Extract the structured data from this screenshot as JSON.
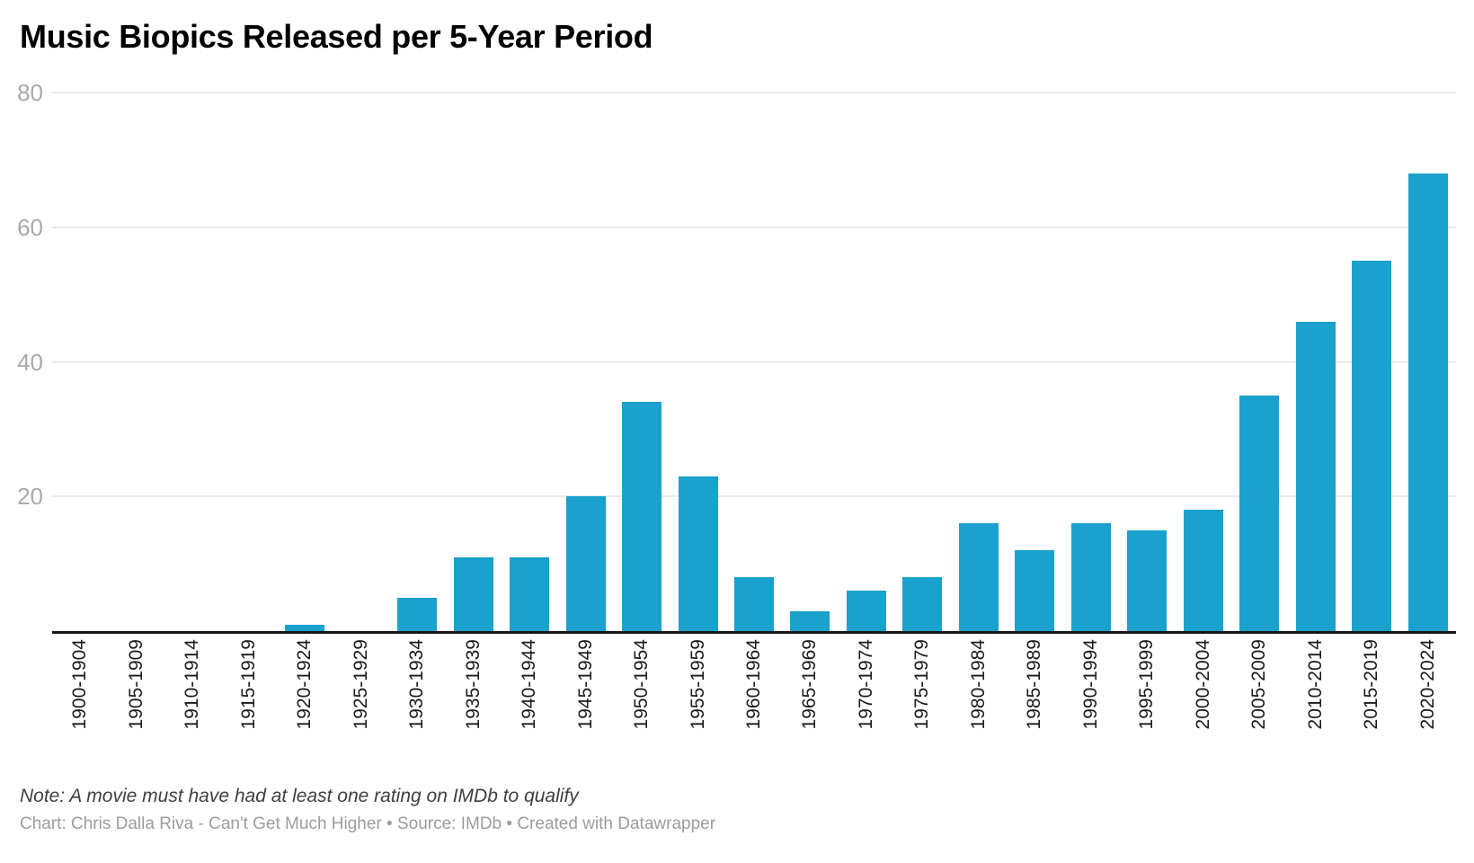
{
  "title": "Music Biopics Released per 5-Year Period",
  "note": "Note: A movie must have had at least one rating on IMDb to qualify",
  "credits": "Chart: Chris Dalla Riva - Can't Get Much Higher • Source: IMDb • Created with Datawrapper",
  "colors": {
    "bar": "#1aa1cd",
    "axis_line": "#161616",
    "gridline": "#e9e9e9",
    "y_tick_text": "#a9a9a9",
    "x_label_text": "#1a1a1a",
    "title_text": "#000000",
    "note_text": "#3f3f3f",
    "credits_text": "#9c9c9c",
    "background": "#ffffff"
  },
  "chart_data": {
    "type": "bar",
    "title": "Music Biopics Released per 5-Year Period",
    "categories": [
      "1900-1904",
      "1905-1909",
      "1910-1914",
      "1915-1919",
      "1920-1924",
      "1925-1929",
      "1930-1934",
      "1935-1939",
      "1940-1944",
      "1945-1949",
      "1950-1954",
      "1955-1959",
      "1960-1964",
      "1965-1969",
      "1970-1974",
      "1975-1979",
      "1980-1984",
      "1985-1989",
      "1990-1994",
      "1995-1999",
      "2000-2004",
      "2005-2009",
      "2010-2014",
      "2015-2019",
      "2020-2024"
    ],
    "values": [
      0,
      0,
      0,
      0,
      1,
      0,
      5,
      11,
      11,
      20,
      34,
      23,
      8,
      3,
      6,
      8,
      16,
      12,
      16,
      15,
      18,
      35,
      46,
      55,
      68
    ],
    "xlabel": "",
    "ylabel": "",
    "ylim": [
      0,
      80
    ],
    "yticks": [
      20,
      40,
      60,
      80
    ],
    "grid": true,
    "legend": "none",
    "x_label_rotation": -90,
    "note": "Note: A movie must have had at least one rating on IMDb to qualify",
    "credits": "Chart: Chris Dalla Riva - Can't Get Much Higher • Source: IMDb • Created with Datawrapper"
  }
}
